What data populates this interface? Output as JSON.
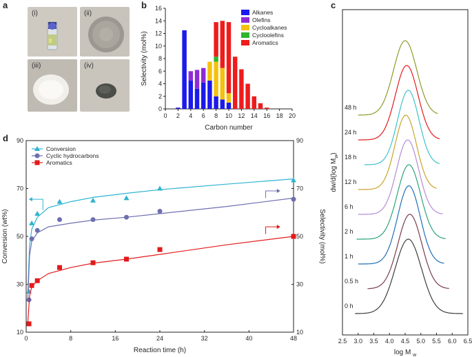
{
  "panels": {
    "a": {
      "label": "a",
      "photos": [
        {
          "label": "(i)",
          "kind": "vial"
        },
        {
          "label": "(ii)",
          "kind": "grey-powder"
        },
        {
          "label": "(iii)",
          "kind": "white-powder"
        },
        {
          "label": "(iv)",
          "kind": "dark-powder"
        }
      ]
    },
    "b": {
      "label": "b"
    },
    "c": {
      "label": "c"
    },
    "d": {
      "label": "d"
    }
  },
  "chart_data": [
    {
      "id": "b",
      "type": "bar",
      "stacked": true,
      "xlabel": "Carbon number",
      "ylabel": "Selectivity (mol%)",
      "xlim": [
        0,
        20
      ],
      "ylim": [
        0,
        16
      ],
      "xticks": [
        0,
        2,
        4,
        6,
        8,
        10,
        12,
        14,
        16,
        18,
        20
      ],
      "yticks": [
        0,
        2,
        4,
        6,
        8,
        10,
        12,
        14,
        16
      ],
      "legend_position": "top-right",
      "x": [
        2,
        3,
        4,
        5,
        6,
        7,
        8,
        9,
        10,
        11,
        12,
        13,
        14,
        15,
        16
      ],
      "series": [
        {
          "name": "Alkanes",
          "color": "#1a1aeb",
          "values": [
            0.2,
            12.5,
            4.5,
            3.2,
            4.2,
            4.5,
            2.0,
            1.5,
            1.0,
            0,
            0,
            0,
            0,
            0,
            0
          ]
        },
        {
          "name": "Olefins",
          "color": "#8e2bd6",
          "values": [
            0,
            0,
            1.5,
            3.0,
            2.3,
            0,
            0,
            0,
            0,
            0,
            0,
            0,
            0,
            0,
            0
          ]
        },
        {
          "name": "Cycloalkanes",
          "color": "#f4c20d",
          "values": [
            0,
            0,
            0,
            0,
            0,
            3.0,
            5.5,
            5.0,
            1.5,
            0,
            0,
            0,
            0,
            0,
            0
          ]
        },
        {
          "name": "Cycloolefins",
          "color": "#2fb52f",
          "values": [
            0,
            0,
            0,
            0,
            0,
            0,
            0.8,
            0,
            0,
            0,
            0,
            0,
            0,
            0,
            0
          ]
        },
        {
          "name": "Aromatics",
          "color": "#ee1c1c",
          "values": [
            0,
            0,
            0,
            0,
            0,
            0,
            5.5,
            7.5,
            11.3,
            8.3,
            6.3,
            4.0,
            2.0,
            0.9,
            0.2
          ]
        }
      ]
    },
    {
      "id": "c",
      "type": "line",
      "xlabel_main": "log M",
      "xlabel_sub": "w",
      "ylabel_main": "dw/d(log M",
      "ylabel_sub": "w",
      "ylabel_end": ")",
      "xlim": [
        2.5,
        6.5
      ],
      "xticks": [
        "2.5",
        "3.0",
        "3.5",
        "4.0",
        "4.5",
        "5.0",
        "5.5",
        "6.0",
        "6.5"
      ],
      "series": [
        {
          "name": "0 h",
          "color": "#3d3d3d",
          "offset": 0,
          "start": 2.9,
          "end": 6.35,
          "peak": 4.6,
          "width": 0.42,
          "amp": 1.0
        },
        {
          "name": "0.5 h",
          "color": "#7a3b4a",
          "offset": 1,
          "start": 3.3,
          "end": 5.9,
          "peak": 4.65,
          "width": 0.38,
          "amp": 1.0
        },
        {
          "name": "1 h",
          "color": "#1f6fb5",
          "offset": 2,
          "start": 3.0,
          "end": 5.75,
          "peak": 4.62,
          "width": 0.36,
          "amp": 1.05
        },
        {
          "name": "2 h",
          "color": "#2aa37a",
          "offset": 3,
          "start": 2.95,
          "end": 5.8,
          "peak": 4.62,
          "width": 0.37,
          "amp": 1.0
        },
        {
          "name": "6 h",
          "color": "#b48ad6",
          "offset": 4,
          "start": 3.0,
          "end": 5.7,
          "peak": 4.58,
          "width": 0.35,
          "amp": 1.0
        },
        {
          "name": "12 h",
          "color": "#c8a42a",
          "offset": 5,
          "start": 3.0,
          "end": 5.5,
          "peak": 4.52,
          "width": 0.34,
          "amp": 1.0
        },
        {
          "name": "18 h",
          "color": "#3cc2cc",
          "offset": 6,
          "start": 3.2,
          "end": 5.6,
          "peak": 4.6,
          "width": 0.34,
          "amp": 1.0
        },
        {
          "name": "24 h",
          "color": "#e31a1c",
          "offset": 7,
          "start": 3.0,
          "end": 5.6,
          "peak": 4.55,
          "width": 0.36,
          "amp": 1.0
        },
        {
          "name": "48 h",
          "color": "#8f9a2a",
          "offset": 8,
          "start": 3.0,
          "end": 5.55,
          "peak": 4.5,
          "width": 0.37,
          "amp": 1.0
        }
      ]
    },
    {
      "id": "d",
      "type": "scatter",
      "xlabel": "Reaction time (h)",
      "ylabel_left": "Conversion (wt%)",
      "ylabel_right": "Selectivity (mol%)",
      "xlim": [
        0,
        48
      ],
      "ylim": [
        10,
        90
      ],
      "xticks": [
        0,
        8,
        16,
        24,
        32,
        40,
        48
      ],
      "yticks": [
        10,
        30,
        50,
        70,
        90
      ],
      "legend_position": "top-left",
      "series": [
        {
          "name": "Conversion",
          "color": "#2db3d1",
          "marker": "triangle",
          "x": [
            0.5,
            1,
            2,
            6,
            12,
            18,
            24,
            48
          ],
          "y": [
            27,
            55.5,
            59.5,
            64.5,
            65,
            66,
            70,
            73.5
          ],
          "fit": [
            [
              0.3,
              27
            ],
            [
              0.6,
              46
            ],
            [
              1,
              53
            ],
            [
              2,
              58
            ],
            [
              4,
              62
            ],
            [
              8,
              64.5
            ],
            [
              12,
              66.3
            ],
            [
              18,
              68
            ],
            [
              24,
              69.5
            ],
            [
              36,
              71.8
            ],
            [
              48,
              74
            ]
          ],
          "axis_arrow": "left"
        },
        {
          "name": "Cyclic hydrocarbons",
          "color": "#6e6eb0",
          "marker": "circle",
          "x": [
            0.5,
            1,
            2,
            6,
            12,
            18,
            24,
            48
          ],
          "y": [
            23.5,
            49,
            52.5,
            57,
            57,
            58,
            60.5,
            65.5
          ],
          "fit": [
            [
              0.3,
              24
            ],
            [
              0.6,
              42
            ],
            [
              1,
              48
            ],
            [
              2,
              51.5
            ],
            [
              4,
              54
            ],
            [
              8,
              55.5
            ],
            [
              12,
              56.8
            ],
            [
              18,
              58
            ],
            [
              24,
              59.5
            ],
            [
              36,
              62.5
            ],
            [
              48,
              66
            ]
          ],
          "axis_arrow": "right"
        },
        {
          "name": "Aromatics",
          "color": "#e31a1c",
          "marker": "square",
          "x": [
            0.5,
            1,
            2,
            6,
            12,
            18,
            24,
            48
          ],
          "y": [
            13.5,
            29.5,
            31.5,
            37,
            39,
            40.5,
            44.5,
            50
          ],
          "fit": [
            [
              0.3,
              14
            ],
            [
              0.6,
              25
            ],
            [
              1,
              29
            ],
            [
              2,
              31.5
            ],
            [
              4,
              34.5
            ],
            [
              8,
              37
            ],
            [
              12,
              38.8
            ],
            [
              18,
              40.5
            ],
            [
              24,
              42.5
            ],
            [
              36,
              46.5
            ],
            [
              48,
              50
            ]
          ],
          "axis_arrow": "right"
        }
      ]
    }
  ]
}
